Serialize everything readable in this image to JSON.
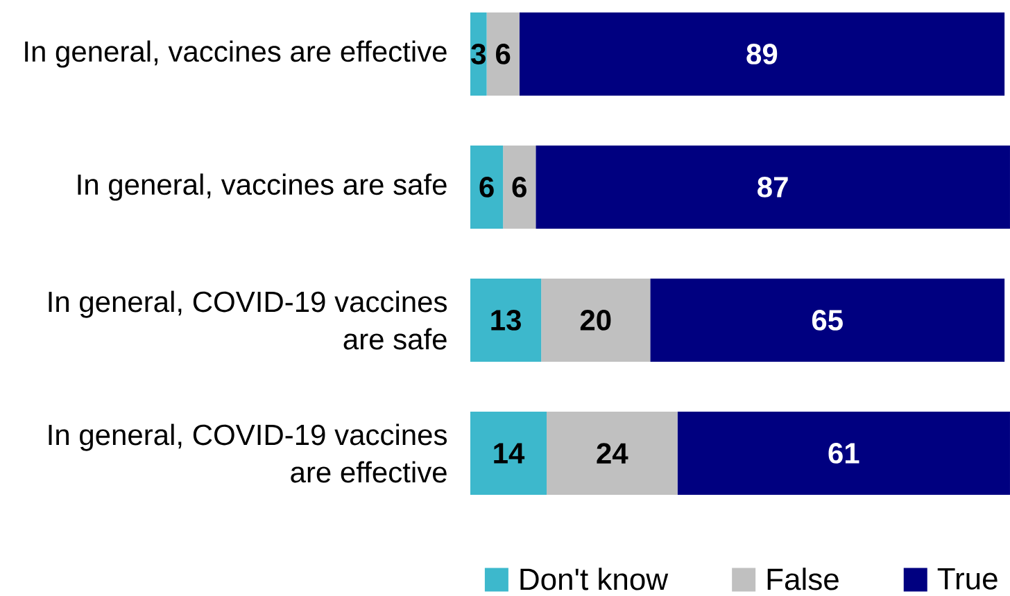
{
  "chart_data": {
    "type": "bar",
    "orientation": "horizontal",
    "stacked": true,
    "categories": [
      "In general, vaccines are effective",
      "In general, vaccines are safe",
      "In general, COVID-19 vaccines are safe",
      "In general, COVID-19 vaccines are effective"
    ],
    "series": [
      {
        "name": "Don't know",
        "color": "#3db8cc",
        "values": [
          3,
          6,
          13,
          14
        ]
      },
      {
        "name": "False",
        "color": "#c0c0c0",
        "values": [
          6,
          6,
          20,
          24
        ]
      },
      {
        "name": "True",
        "color": "#000080",
        "values": [
          89,
          87,
          65,
          61
        ]
      }
    ],
    "data_labels": true,
    "legend": "bottom right",
    "tick_labels": "y"
  }
}
